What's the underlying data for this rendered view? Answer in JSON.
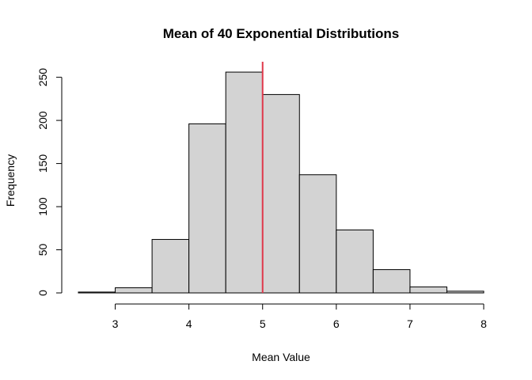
{
  "chart_data": {
    "type": "bar",
    "title": "Mean of 40 Exponential Distributions",
    "xlabel": "Mean Value",
    "ylabel": "Frequency",
    "bins": [
      {
        "x0": 2.5,
        "x1": 3.0,
        "count": 1
      },
      {
        "x0": 3.0,
        "x1": 3.5,
        "count": 6
      },
      {
        "x0": 3.5,
        "x1": 4.0,
        "count": 62
      },
      {
        "x0": 4.0,
        "x1": 4.5,
        "count": 196
      },
      {
        "x0": 4.5,
        "x1": 5.0,
        "count": 256
      },
      {
        "x0": 5.0,
        "x1": 5.5,
        "count": 230
      },
      {
        "x0": 5.5,
        "x1": 6.0,
        "count": 137
      },
      {
        "x0": 6.0,
        "x1": 6.5,
        "count": 73
      },
      {
        "x0": 6.5,
        "x1": 7.0,
        "count": 27
      },
      {
        "x0": 7.0,
        "x1": 7.5,
        "count": 7
      },
      {
        "x0": 7.5,
        "x1": 8.0,
        "count": 2
      }
    ],
    "xlim": [
      2.5,
      8.0
    ],
    "ylim": [
      0,
      268
    ],
    "x_ticks": [
      3,
      4,
      5,
      6,
      7,
      8
    ],
    "y_ticks": [
      0,
      50,
      100,
      150,
      200,
      250
    ],
    "reference_line": {
      "x": 5,
      "color": "#e0374a"
    },
    "bar_color": "#d3d3d3",
    "grid": false,
    "legend": "none"
  }
}
